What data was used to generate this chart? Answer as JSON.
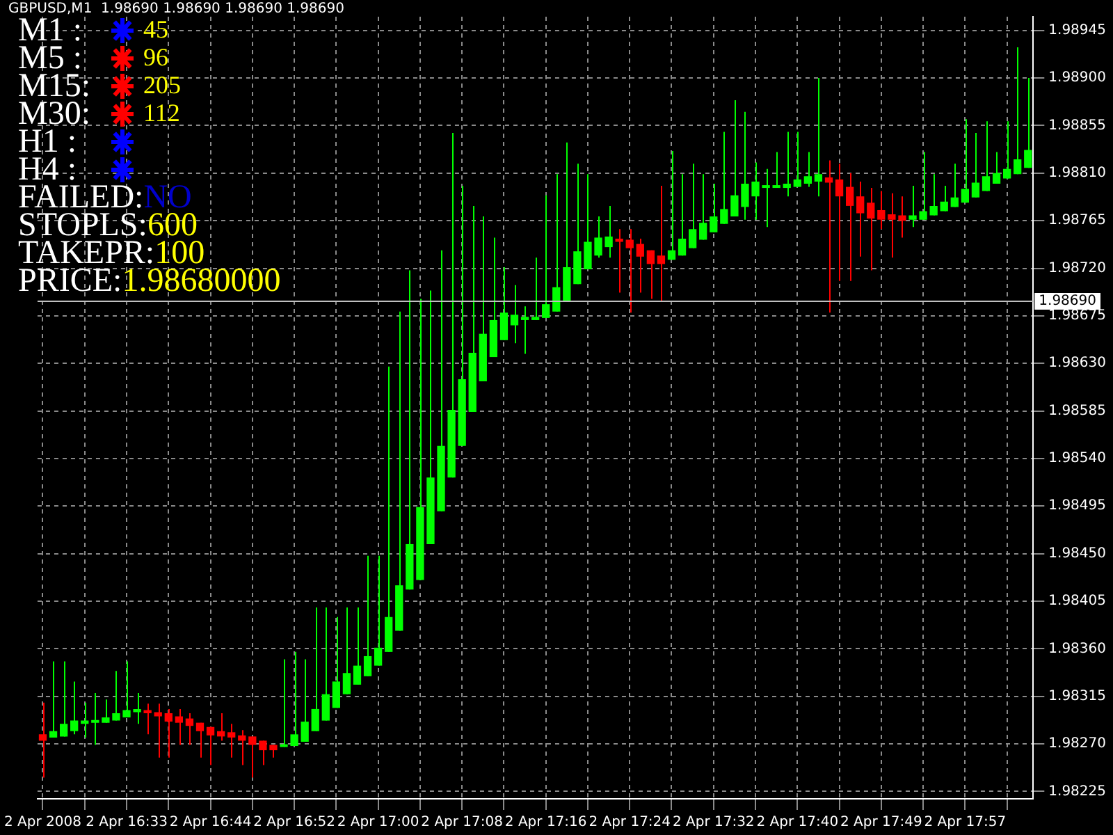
{
  "chart_data": {
    "type": "candlestick",
    "title": "GBPUSD,M1  1.98690 1.98690 1.98690 1.98690",
    "annotations": [
      "M1 :",
      "45",
      "M5 :",
      "96",
      "M15:",
      "205",
      "M30:",
      "112",
      "H1 :",
      "H4 :",
      "FAILED:",
      "NO",
      "STOPLS:",
      "600",
      "TAKEPR:",
      "100",
      "PRICE:",
      "1.98680000"
    ],
    "categories": [
      "2 Apr 2008",
      null,
      null,
      null,
      null,
      null,
      null,
      null,
      "2 Apr 16:33",
      null,
      null,
      null,
      null,
      null,
      null,
      null,
      "2 Apr 16:44",
      null,
      null,
      null,
      null,
      null,
      null,
      null,
      "2 Apr 16:52",
      null,
      null,
      null,
      null,
      null,
      null,
      null,
      "2 Apr 17:00",
      null,
      null,
      null,
      null,
      null,
      null,
      null,
      "2 Apr 17:08",
      null,
      null,
      null,
      null,
      null,
      null,
      null,
      "2 Apr 17:16",
      null,
      null,
      null,
      null,
      null,
      null,
      null,
      "2 Apr 17:24",
      null,
      null,
      null,
      null,
      null,
      null,
      null,
      "2 Apr 17:32",
      null,
      null,
      null,
      null,
      null,
      null,
      null,
      "2 Apr 17:40",
      null,
      null,
      null,
      null,
      null,
      null,
      null,
      "2 Apr 17:49",
      null,
      null,
      null,
      null,
      null,
      null,
      null,
      "2 Apr 17:57",
      null,
      null,
      null,
      null,
      null,
      null
    ],
    "ohlc": [
      [
        1.98279,
        1.98309,
        1.98238,
        1.98273
      ],
      [
        1.98276,
        1.98348,
        1.98276,
        1.98282
      ],
      [
        1.98277,
        1.98348,
        1.98277,
        1.98289
      ],
      [
        1.98282,
        1.98329,
        1.98279,
        1.98292
      ],
      [
        1.98289,
        1.98309,
        1.98276,
        1.98292
      ],
      [
        1.9829,
        1.98318,
        1.98269,
        1.98292
      ],
      [
        1.9829,
        1.98312,
        1.9829,
        1.98295
      ],
      [
        1.98292,
        1.98339,
        1.98292,
        1.98299
      ],
      [
        1.98295,
        1.98348,
        1.98295,
        1.98302
      ],
      [
        1.983,
        1.98318,
        1.98289,
        1.98303
      ],
      [
        1.98302,
        1.98308,
        1.98279,
        1.98299
      ],
      [
        1.983,
        1.98308,
        1.98257,
        1.98296
      ],
      [
        1.98299,
        1.98303,
        1.98257,
        1.98291
      ],
      [
        1.98296,
        1.98303,
        1.98269,
        1.9829
      ],
      [
        1.98294,
        1.98299,
        1.98269,
        1.98287
      ],
      [
        1.9829,
        1.9829,
        1.98257,
        1.98282
      ],
      [
        1.98286,
        1.98286,
        1.9825,
        1.98278
      ],
      [
        1.98282,
        1.98299,
        1.98273,
        1.98277
      ],
      [
        1.98281,
        1.98289,
        1.98257,
        1.98276
      ],
      [
        1.98278,
        1.98283,
        1.9825,
        1.98273
      ],
      [
        1.98277,
        1.98277,
        1.98238,
        1.98269
      ],
      [
        1.98273,
        1.98273,
        1.9825,
        1.98264
      ],
      [
        1.98269,
        1.98269,
        1.98257,
        1.98264
      ],
      [
        1.98267,
        1.9835,
        1.98267,
        1.98269
      ],
      [
        1.98268,
        1.98357,
        1.98268,
        1.98279
      ],
      [
        1.98272,
        1.9835,
        1.98272,
        1.98291
      ],
      [
        1.98282,
        1.98399,
        1.98282,
        1.98303
      ],
      [
        1.98292,
        1.98399,
        1.98292,
        1.98317
      ],
      [
        1.98304,
        1.9839,
        1.98304,
        1.98329
      ],
      [
        1.98317,
        1.98399,
        1.98317,
        1.98337
      ],
      [
        1.98326,
        1.98399,
        1.98326,
        1.98344
      ],
      [
        1.98334,
        1.98448,
        1.98334,
        1.98353
      ],
      [
        1.98344,
        1.98448,
        1.98344,
        1.98361
      ],
      [
        1.98357,
        1.98627,
        1.98357,
        1.9839
      ],
      [
        1.98377,
        1.98679,
        1.98377,
        1.9842
      ],
      [
        1.98416,
        1.98718,
        1.98416,
        1.98459
      ],
      [
        1.98425,
        1.98691,
        1.98425,
        1.98494
      ],
      [
        1.98459,
        1.98699,
        1.98459,
        1.98522
      ],
      [
        1.9849,
        1.98737,
        1.9849,
        1.98552
      ],
      [
        1.98522,
        1.98848,
        1.98522,
        1.98586
      ],
      [
        1.98552,
        1.98798,
        1.98552,
        1.98615
      ],
      [
        1.98584,
        1.98779,
        1.98584,
        1.9864
      ],
      [
        1.98613,
        1.98769,
        1.98613,
        1.98658
      ],
      [
        1.98636,
        1.98749,
        1.98636,
        1.98671
      ],
      [
        1.98652,
        1.98721,
        1.98652,
        1.98678
      ],
      [
        1.98666,
        1.98704,
        1.98649,
        1.98676
      ],
      [
        1.98671,
        1.98684,
        1.98639,
        1.98674
      ],
      [
        1.98671,
        1.9873,
        1.98671,
        1.98674
      ],
      [
        1.98673,
        1.98789,
        1.98673,
        1.98686
      ],
      [
        1.98679,
        1.98809,
        1.98679,
        1.98702
      ],
      [
        1.98689,
        1.98839,
        1.98689,
        1.98721
      ],
      [
        1.98705,
        1.98819,
        1.98705,
        1.98736
      ],
      [
        1.98719,
        1.98809,
        1.98719,
        1.98745
      ],
      [
        1.98732,
        1.98769,
        1.9873,
        1.98749
      ],
      [
        1.9874,
        1.98779,
        1.9873,
        1.9875
      ],
      [
        1.98748,
        1.98757,
        1.98697,
        1.98745
      ],
      [
        1.98747,
        1.98757,
        1.98678,
        1.98739
      ],
      [
        1.98743,
        1.98748,
        1.98697,
        1.98731
      ],
      [
        1.98737,
        1.98737,
        1.98691,
        1.98724
      ],
      [
        1.98732,
        1.98798,
        1.98688,
        1.98724
      ],
      [
        1.98728,
        1.98831,
        1.98728,
        1.98737
      ],
      [
        1.98732,
        1.98809,
        1.98732,
        1.98748
      ],
      [
        1.98739,
        1.98819,
        1.98739,
        1.98757
      ],
      [
        1.98747,
        1.98809,
        1.98747,
        1.98763
      ],
      [
        1.98754,
        1.988,
        1.98754,
        1.98769
      ],
      [
        1.98762,
        1.98849,
        1.98762,
        1.98776
      ],
      [
        1.98769,
        1.98879,
        1.98769,
        1.98789
      ],
      [
        1.98778,
        1.98868,
        1.98766,
        1.988
      ],
      [
        1.98788,
        1.9882,
        1.98766,
        1.98802
      ],
      [
        1.98796,
        1.98814,
        1.98759,
        1.98798
      ],
      [
        1.98796,
        1.9883,
        1.98796,
        1.98798
      ],
      [
        1.98796,
        1.98849,
        1.98788,
        1.988
      ],
      [
        1.98797,
        1.98849,
        1.98797,
        1.98804
      ],
      [
        1.988,
        1.9883,
        1.98797,
        1.98807
      ],
      [
        1.98802,
        1.989,
        1.98788,
        1.98809
      ],
      [
        1.98806,
        1.98822,
        1.98678,
        1.98801
      ],
      [
        1.98804,
        1.98819,
        1.98708,
        1.98788
      ],
      [
        1.98797,
        1.9881,
        1.98708,
        1.98779
      ],
      [
        1.98788,
        1.98802,
        1.98731,
        1.98772
      ],
      [
        1.98782,
        1.98796,
        1.98718,
        1.98767
      ],
      [
        1.98775,
        1.98793,
        1.98757,
        1.98766
      ],
      [
        1.98771,
        1.98791,
        1.9873,
        1.98766
      ],
      [
        1.9877,
        1.98788,
        1.98749,
        1.98765
      ],
      [
        1.98766,
        1.98798,
        1.98759,
        1.9877
      ],
      [
        1.98766,
        1.9883,
        1.98766,
        1.98774
      ],
      [
        1.9877,
        1.98809,
        1.9877,
        1.98779
      ],
      [
        1.98774,
        1.98798,
        1.98774,
        1.98783
      ],
      [
        1.98778,
        1.98819,
        1.98778,
        1.98787
      ],
      [
        1.98782,
        1.98861,
        1.98782,
        1.98795
      ],
      [
        1.98787,
        1.98848,
        1.98787,
        1.98801
      ],
      [
        1.98793,
        1.98859,
        1.98793,
        1.98807
      ],
      [
        1.988,
        1.9883,
        1.988,
        1.9881
      ],
      [
        1.98805,
        1.98859,
        1.98805,
        1.98814
      ],
      [
        1.98809,
        1.98929,
        1.98809,
        1.98823
      ],
      [
        1.98815,
        1.989,
        1.98815,
        1.98832
      ]
    ],
    "colors": [
      "#ff0000",
      "#00ff00",
      "#00ff00",
      "#00ff00",
      "#00ff00",
      "#00ff00",
      "#00ff00",
      "#00ff00",
      "#00ff00",
      "#00ff00",
      "#ff0000",
      "#ff0000",
      "#ff0000",
      "#ff0000",
      "#ff0000",
      "#ff0000",
      "#ff0000",
      "#ff0000",
      "#ff0000",
      "#ff0000",
      "#ff0000",
      "#ff0000",
      "#ff0000",
      "#00ff00",
      "#00ff00",
      "#00ff00",
      "#00ff00",
      "#00ff00",
      "#00ff00",
      "#00ff00",
      "#00ff00",
      "#00ff00",
      "#00ff00",
      "#00ff00",
      "#00ff00",
      "#00ff00",
      "#00ff00",
      "#00ff00",
      "#00ff00",
      "#00ff00",
      "#00ff00",
      "#00ff00",
      "#00ff00",
      "#00ff00",
      "#00ff00",
      "#00ff00",
      "#00ff00",
      "#00ff00",
      "#00ff00",
      "#00ff00",
      "#00ff00",
      "#00ff00",
      "#00ff00",
      "#00ff00",
      "#00ff00",
      "#ff0000",
      "#ff0000",
      "#ff0000",
      "#ff0000",
      "#ff0000",
      "#00ff00",
      "#00ff00",
      "#00ff00",
      "#00ff00",
      "#00ff00",
      "#00ff00",
      "#00ff00",
      "#00ff00",
      "#00ff00",
      "#00ff00",
      "#00ff00",
      "#00ff00",
      "#00ff00",
      "#00ff00",
      "#00ff00",
      "#ff0000",
      "#ff0000",
      "#ff0000",
      "#ff0000",
      "#ff0000",
      "#ff0000",
      "#ff0000",
      "#ff0000",
      "#00ff00",
      "#00ff00",
      "#00ff00",
      "#00ff00",
      "#00ff00",
      "#00ff00",
      "#00ff00",
      "#00ff00",
      "#00ff00",
      "#00ff00",
      "#00ff00",
      "#00ff00"
    ],
    "ylim": [
      1.98218,
      1.98958
    ],
    "yticks": [
      1.98225,
      {
        "value": 1.9827,
        "label": "1.98270"
      },
      1.98315,
      {
        "value": 1.9836,
        "label": "1.98360"
      },
      1.98405,
      {
        "value": 1.9845,
        "label": "1.98450"
      },
      1.98495,
      {
        "value": 1.9854,
        "label": "1.98540"
      },
      1.98585,
      {
        "value": 1.9863,
        "label": "1.98630"
      },
      1.98675,
      {
        "value": 1.9872,
        "label": "1.98720"
      },
      1.98765,
      {
        "value": 1.9881,
        "label": "1.98810"
      },
      1.98855,
      {
        "value": 1.989,
        "label": "1.98900"
      },
      1.98945
    ],
    "ref_lines": [
      {
        "axis": "y",
        "value": 1.9869,
        "label": "1.98690",
        "color": "#c0c0c0"
      }
    ],
    "grid": true
  }
}
